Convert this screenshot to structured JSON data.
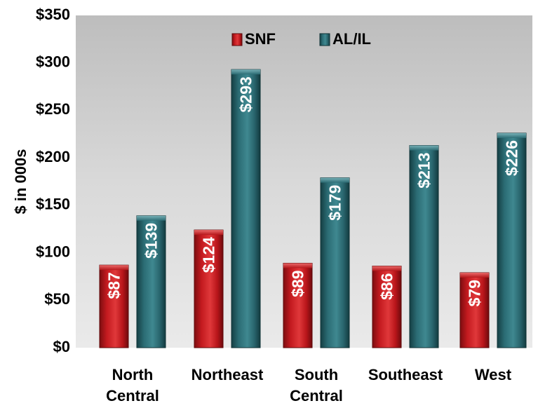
{
  "chart_data": {
    "type": "bar",
    "title": "",
    "xlabel": "",
    "ylabel": "$ in 000s",
    "ylim": [
      0,
      350
    ],
    "yticks": [
      0,
      50,
      100,
      150,
      200,
      250,
      300,
      350
    ],
    "ytick_labels": [
      "$0",
      "$50",
      "$100",
      "$150",
      "$200",
      "$250",
      "$300",
      "$350"
    ],
    "categories": [
      "North Central",
      "Northeast",
      "South Central",
      "Southeast",
      "West"
    ],
    "category_labels": [
      [
        "North",
        "Central"
      ],
      [
        "Northeast"
      ],
      [
        "South",
        "Central"
      ],
      [
        "Southeast"
      ],
      [
        "West"
      ]
    ],
    "series": [
      {
        "name": "SNF",
        "values": [
          87,
          124,
          89,
          86,
          79
        ],
        "labels": [
          "$87",
          "$124",
          "$89",
          "$86",
          "$79"
        ],
        "color": "#c0161b"
      },
      {
        "name": "AL/IL",
        "values": [
          139,
          293,
          179,
          213,
          226
        ],
        "labels": [
          "$139",
          "$293",
          "$179",
          "$213",
          "$226"
        ],
        "color": "#2a6a72"
      }
    ],
    "legend_position": "top",
    "grid": false,
    "plot_background": "#d0d0d0"
  }
}
